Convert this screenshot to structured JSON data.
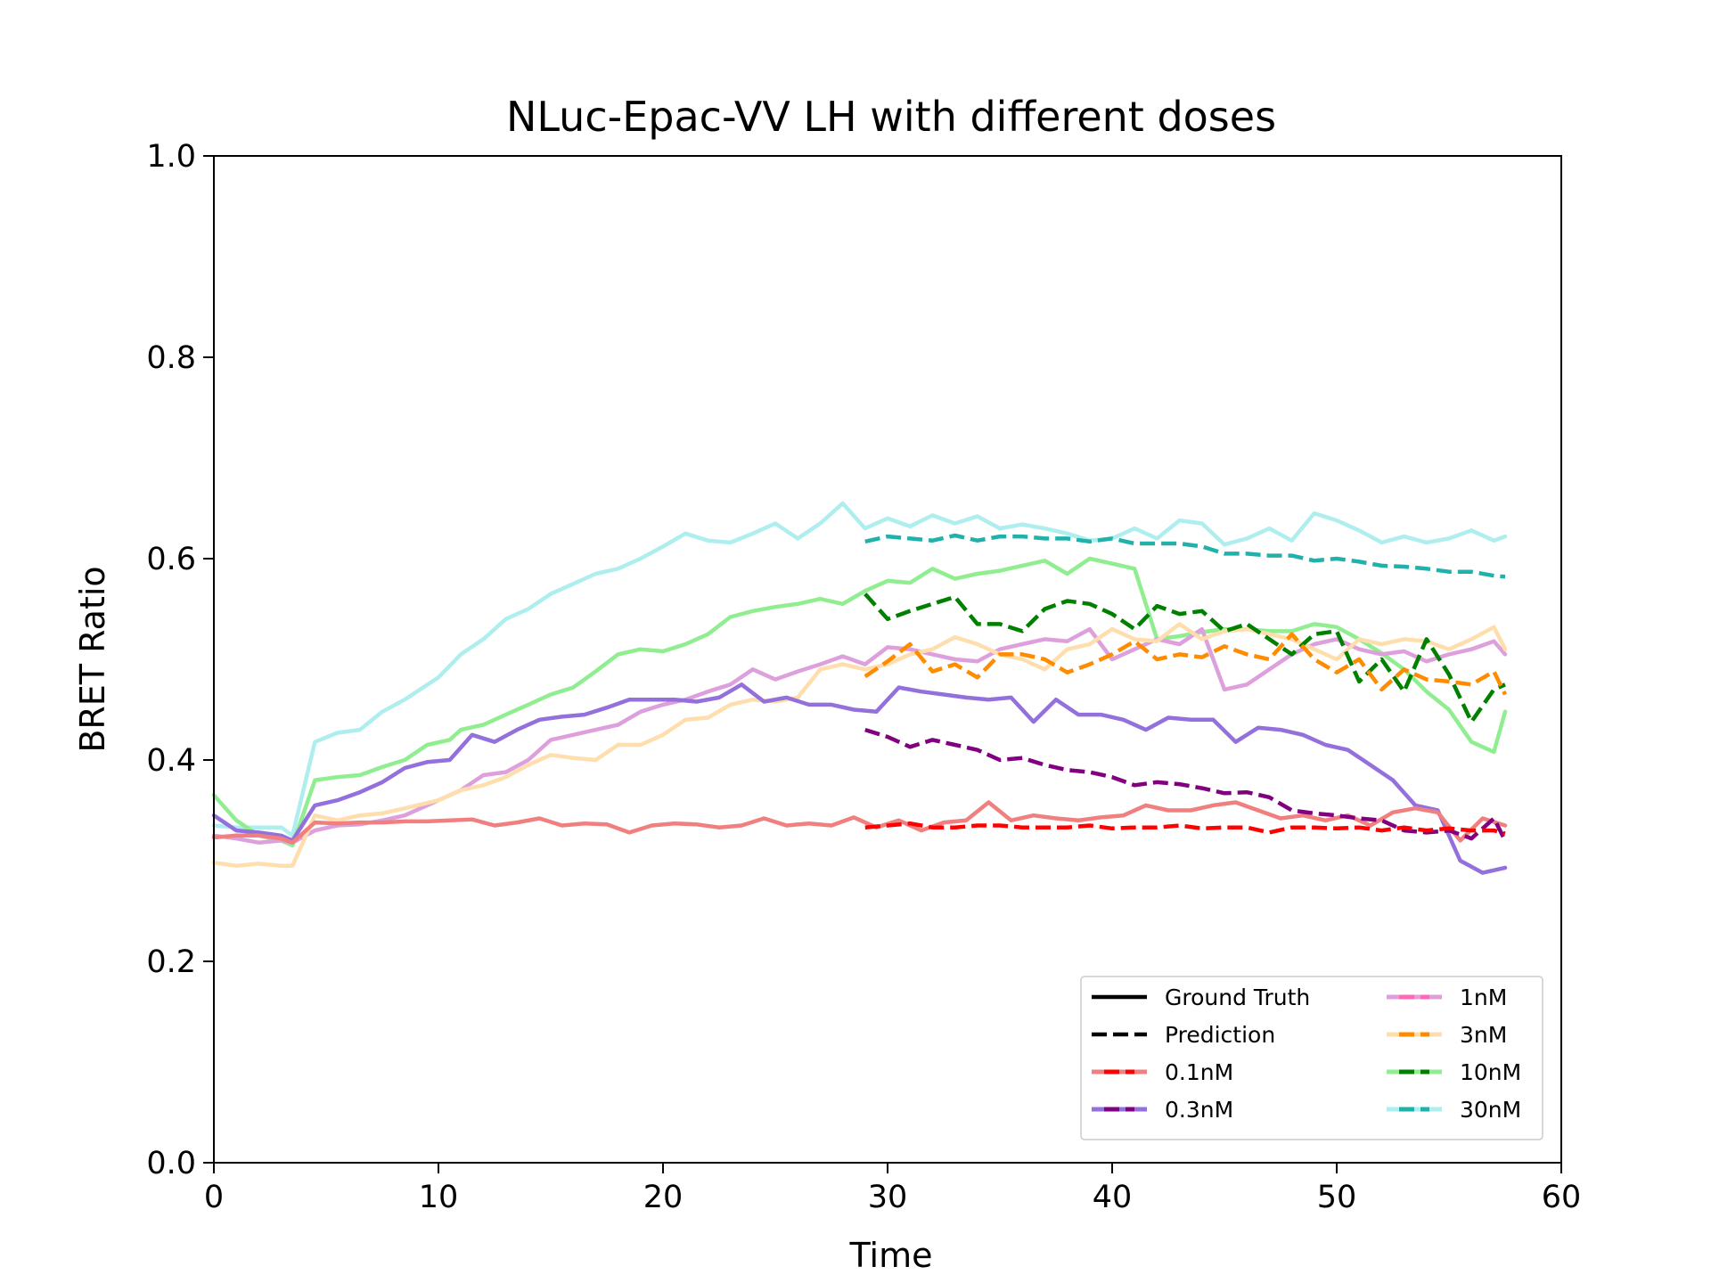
{
  "chart_data": {
    "type": "line",
    "title": "NLuc-Epac-VV LH with different doses",
    "xlabel": "Time",
    "ylabel": "BRET Ratio",
    "xlim": [
      0,
      60
    ],
    "ylim": [
      0,
      1
    ],
    "xticks": [
      0,
      10,
      20,
      30,
      40,
      50,
      60
    ],
    "yticks": [
      0.0,
      0.2,
      0.4,
      0.6,
      0.8,
      1.0
    ],
    "xtick_labels": [
      "0",
      "10",
      "20",
      "30",
      "40",
      "50",
      "60"
    ],
    "ytick_labels": [
      "0.0",
      "0.2",
      "0.4",
      "0.6",
      "0.8",
      "1.0"
    ],
    "grid": false,
    "legend_position": "lower-right",
    "legend_style": [
      {
        "label": "Ground Truth",
        "dash": false
      },
      {
        "label": "Prediction",
        "dash": true
      }
    ],
    "legend_doses": [
      {
        "label": "0.1nM",
        "gt_color": "#f08080",
        "pred_color": "#ff0000"
      },
      {
        "label": "0.3nM",
        "gt_color": "#9370db",
        "pred_color": "#800080"
      },
      {
        "label": "1nM",
        "gt_color": "#dda0dd",
        "pred_color": "#ff69b4"
      },
      {
        "label": "3nM",
        "gt_color": "#ffdead",
        "pred_color": "#ff8c00"
      },
      {
        "label": "10nM",
        "gt_color": "#90ee90",
        "pred_color": "#008000"
      },
      {
        "label": "30nM",
        "gt_color": "#afeeee",
        "pred_color": "#20b2aa"
      }
    ],
    "series": [
      {
        "dose": "30nM",
        "kind": "ground_truth",
        "color": "#afeeee",
        "x": [
          0,
          1,
          2,
          3,
          3.5,
          4.5,
          5.5,
          6.5,
          7.5,
          8.5,
          10,
          11,
          12,
          13,
          14,
          15,
          16,
          17,
          18,
          19,
          20,
          21,
          22,
          23,
          24,
          25,
          26,
          27,
          28,
          29,
          30,
          31,
          32,
          33,
          34,
          35,
          36,
          37,
          38,
          39,
          40,
          41,
          42,
          43,
          44,
          45,
          46,
          47,
          48,
          49,
          50,
          51,
          52,
          53,
          54,
          55,
          56,
          57,
          57.5
        ],
        "y": [
          0.335,
          0.333,
          0.333,
          0.333,
          0.325,
          0.418,
          0.427,
          0.43,
          0.448,
          0.46,
          0.482,
          0.505,
          0.52,
          0.54,
          0.55,
          0.565,
          0.575,
          0.585,
          0.59,
          0.6,
          0.612,
          0.625,
          0.618,
          0.616,
          0.625,
          0.635,
          0.62,
          0.635,
          0.655,
          0.63,
          0.64,
          0.632,
          0.643,
          0.635,
          0.642,
          0.63,
          0.634,
          0.63,
          0.625,
          0.618,
          0.62,
          0.63,
          0.62,
          0.638,
          0.635,
          0.614,
          0.62,
          0.63,
          0.618,
          0.645,
          0.638,
          0.628,
          0.616,
          0.622,
          0.616,
          0.62,
          0.628,
          0.618,
          0.622
        ]
      },
      {
        "dose": "10nM",
        "kind": "ground_truth",
        "color": "#90ee90",
        "x": [
          0,
          1,
          2,
          3,
          3.5,
          4.5,
          5.5,
          6.5,
          7.5,
          8.5,
          9.5,
          10.5,
          11,
          12,
          13,
          14,
          15,
          16,
          17,
          18,
          19,
          20,
          21,
          22,
          23,
          24,
          25,
          26,
          27,
          28,
          29,
          30,
          31,
          32,
          33,
          34,
          35,
          36,
          37,
          38,
          39,
          40,
          41,
          42,
          43,
          44,
          45,
          46,
          47,
          48,
          49,
          50,
          51,
          52,
          53,
          54,
          55,
          56,
          57,
          57.5
        ],
        "y": [
          0.365,
          0.34,
          0.325,
          0.32,
          0.315,
          0.38,
          0.383,
          0.385,
          0.393,
          0.4,
          0.415,
          0.42,
          0.43,
          0.435,
          0.445,
          0.455,
          0.465,
          0.472,
          0.488,
          0.505,
          0.51,
          0.508,
          0.515,
          0.525,
          0.542,
          0.548,
          0.552,
          0.555,
          0.56,
          0.555,
          0.568,
          0.578,
          0.576,
          0.59,
          0.58,
          0.585,
          0.588,
          0.593,
          0.598,
          0.585,
          0.6,
          0.595,
          0.59,
          0.52,
          0.523,
          0.527,
          0.53,
          0.53,
          0.528,
          0.528,
          0.535,
          0.532,
          0.52,
          0.506,
          0.49,
          0.468,
          0.45,
          0.418,
          0.408,
          0.448
        ]
      },
      {
        "dose": "1nM",
        "kind": "ground_truth",
        "color": "#dda0dd",
        "x": [
          0,
          1,
          2,
          3,
          3.5,
          4.5,
          5.5,
          6.5,
          7.5,
          8.5,
          10,
          11,
          12,
          13,
          14,
          15,
          16,
          17,
          18,
          19,
          20,
          21,
          22,
          23,
          24,
          25,
          26,
          27,
          28,
          29,
          30,
          31,
          32,
          33,
          34,
          35,
          36,
          37,
          38,
          39,
          40,
          41,
          42,
          43,
          44,
          45,
          46,
          47,
          48,
          49,
          50,
          51,
          52,
          53,
          54,
          55,
          56,
          57,
          57.5
        ],
        "y": [
          0.325,
          0.322,
          0.318,
          0.32,
          0.318,
          0.33,
          0.335,
          0.336,
          0.34,
          0.345,
          0.36,
          0.37,
          0.385,
          0.388,
          0.4,
          0.42,
          0.425,
          0.43,
          0.435,
          0.448,
          0.455,
          0.46,
          0.468,
          0.475,
          0.49,
          0.48,
          0.488,
          0.495,
          0.503,
          0.495,
          0.512,
          0.51,
          0.505,
          0.5,
          0.498,
          0.51,
          0.515,
          0.52,
          0.518,
          0.53,
          0.5,
          0.51,
          0.52,
          0.515,
          0.53,
          0.47,
          0.475,
          0.49,
          0.505,
          0.515,
          0.52,
          0.51,
          0.505,
          0.508,
          0.498,
          0.505,
          0.51,
          0.518,
          0.505
        ]
      },
      {
        "dose": "3nM",
        "kind": "ground_truth",
        "color": "#ffdead",
        "x": [
          0,
          1,
          2,
          3,
          3.5,
          4.5,
          5.5,
          6.5,
          7.5,
          8.5,
          10,
          11,
          12,
          13,
          14,
          15,
          16,
          17,
          18,
          19,
          20,
          21,
          22,
          23,
          24,
          25,
          26,
          27,
          28,
          29,
          30,
          31,
          32,
          33,
          34,
          35,
          36,
          37,
          38,
          39,
          40,
          41,
          42,
          43,
          44,
          45,
          46,
          47,
          48,
          49,
          50,
          51,
          52,
          53,
          54,
          55,
          56,
          57,
          57.5
        ],
        "y": [
          0.298,
          0.295,
          0.297,
          0.295,
          0.295,
          0.345,
          0.34,
          0.345,
          0.347,
          0.352,
          0.36,
          0.37,
          0.375,
          0.383,
          0.395,
          0.405,
          0.402,
          0.4,
          0.415,
          0.415,
          0.425,
          0.44,
          0.442,
          0.455,
          0.46,
          0.458,
          0.462,
          0.49,
          0.495,
          0.49,
          0.495,
          0.505,
          0.51,
          0.522,
          0.515,
          0.505,
          0.5,
          0.49,
          0.51,
          0.515,
          0.53,
          0.52,
          0.518,
          0.535,
          0.52,
          0.528,
          0.53,
          0.525,
          0.52,
          0.51,
          0.5,
          0.52,
          0.515,
          0.52,
          0.518,
          0.51,
          0.52,
          0.532,
          0.51
        ]
      },
      {
        "dose": "0.3nM",
        "kind": "ground_truth",
        "color": "#9370db",
        "x": [
          0,
          1,
          2,
          3,
          3.5,
          4.5,
          5.5,
          6.5,
          7.5,
          8.5,
          9.5,
          10.5,
          11.5,
          12.5,
          13.5,
          14.5,
          15.5,
          16.5,
          17.5,
          18.5,
          19.5,
          20.5,
          21.5,
          22.5,
          23.5,
          24.5,
          25.5,
          26.5,
          27.5,
          28.5,
          29.5,
          30.5,
          31.5,
          32.5,
          33.5,
          34.5,
          35.5,
          36.5,
          37.5,
          38.5,
          39.5,
          40.5,
          41.5,
          42.5,
          43.5,
          44.5,
          45.5,
          46.5,
          47.5,
          48.5,
          49.5,
          50.5,
          51.5,
          52.5,
          53.5,
          54.5,
          55.5,
          56.5,
          57.5
        ],
        "y": [
          0.345,
          0.33,
          0.328,
          0.325,
          0.32,
          0.355,
          0.36,
          0.368,
          0.378,
          0.392,
          0.398,
          0.4,
          0.425,
          0.418,
          0.43,
          0.44,
          0.443,
          0.445,
          0.452,
          0.46,
          0.46,
          0.46,
          0.458,
          0.462,
          0.475,
          0.458,
          0.462,
          0.455,
          0.455,
          0.45,
          0.448,
          0.472,
          0.468,
          0.465,
          0.462,
          0.46,
          0.462,
          0.438,
          0.46,
          0.445,
          0.445,
          0.44,
          0.43,
          0.442,
          0.44,
          0.44,
          0.418,
          0.432,
          0.43,
          0.425,
          0.415,
          0.41,
          0.395,
          0.38,
          0.355,
          0.35,
          0.3,
          0.288,
          0.293
        ]
      },
      {
        "dose": "0.1nM",
        "kind": "ground_truth",
        "color": "#f08080",
        "x": [
          0,
          1,
          2,
          3,
          3.5,
          4.5,
          5.5,
          6.5,
          7.5,
          8.5,
          9.5,
          10.5,
          11.5,
          12.5,
          13.5,
          14.5,
          15.5,
          16.5,
          17.5,
          18.5,
          19.5,
          20.5,
          21.5,
          22.5,
          23.5,
          24.5,
          25.5,
          26.5,
          27.5,
          28.5,
          29.5,
          30.5,
          31.5,
          32.5,
          33.5,
          34.5,
          35.5,
          36.5,
          37.5,
          38.5,
          39.5,
          40.5,
          41.5,
          42.5,
          43.5,
          44.5,
          45.5,
          46.5,
          47.5,
          48.5,
          49.5,
          50.5,
          51.5,
          52.5,
          53.5,
          54.5,
          55.5,
          56.5,
          57.5
        ],
        "y": [
          0.323,
          0.325,
          0.325,
          0.322,
          0.318,
          0.338,
          0.337,
          0.338,
          0.338,
          0.339,
          0.339,
          0.34,
          0.341,
          0.335,
          0.338,
          0.342,
          0.335,
          0.337,
          0.336,
          0.328,
          0.335,
          0.337,
          0.336,
          0.333,
          0.335,
          0.342,
          0.335,
          0.337,
          0.335,
          0.343,
          0.333,
          0.34,
          0.33,
          0.338,
          0.34,
          0.358,
          0.34,
          0.345,
          0.342,
          0.34,
          0.343,
          0.345,
          0.355,
          0.35,
          0.35,
          0.355,
          0.358,
          0.35,
          0.342,
          0.345,
          0.34,
          0.345,
          0.335,
          0.348,
          0.352,
          0.348,
          0.32,
          0.342,
          0.335
        ]
      },
      {
        "dose": "30nM",
        "kind": "prediction",
        "color": "#20b2aa",
        "x": [
          29,
          30,
          31,
          32,
          33,
          34,
          35,
          36,
          37,
          38,
          39,
          40,
          41,
          42,
          43,
          44,
          45,
          46,
          47,
          48,
          49,
          50,
          51,
          52,
          53,
          54,
          55,
          56,
          57,
          57.5
        ],
        "y": [
          0.617,
          0.622,
          0.62,
          0.618,
          0.623,
          0.618,
          0.622,
          0.622,
          0.62,
          0.62,
          0.617,
          0.62,
          0.615,
          0.615,
          0.615,
          0.612,
          0.605,
          0.605,
          0.603,
          0.603,
          0.598,
          0.6,
          0.597,
          0.593,
          0.592,
          0.59,
          0.587,
          0.587,
          0.583,
          0.582
        ]
      },
      {
        "dose": "10nM",
        "kind": "prediction",
        "color": "#008000",
        "x": [
          29,
          30,
          31,
          32,
          33,
          34,
          35,
          36,
          37,
          38,
          39,
          40,
          41,
          42,
          43,
          44,
          45,
          46,
          47,
          48,
          49,
          50,
          51,
          52,
          53,
          54,
          55,
          56,
          57,
          57.5
        ],
        "y": [
          0.565,
          0.54,
          0.548,
          0.555,
          0.562,
          0.535,
          0.535,
          0.528,
          0.55,
          0.558,
          0.555,
          0.545,
          0.53,
          0.553,
          0.545,
          0.548,
          0.528,
          0.535,
          0.52,
          0.505,
          0.525,
          0.528,
          0.478,
          0.5,
          0.468,
          0.52,
          0.485,
          0.438,
          0.47,
          0.475
        ]
      },
      {
        "dose": "3nM",
        "kind": "prediction",
        "color": "#ff8c00",
        "x": [
          29,
          30,
          31,
          32,
          33,
          34,
          35,
          36,
          37,
          38,
          39,
          40,
          41,
          42,
          43,
          44,
          45,
          46,
          47,
          48,
          49,
          50,
          51,
          52,
          53,
          54,
          55,
          56,
          57,
          57.5
        ],
        "y": [
          0.483,
          0.498,
          0.515,
          0.488,
          0.495,
          0.482,
          0.505,
          0.505,
          0.5,
          0.487,
          0.495,
          0.505,
          0.518,
          0.5,
          0.505,
          0.502,
          0.513,
          0.505,
          0.5,
          0.525,
          0.5,
          0.487,
          0.5,
          0.47,
          0.49,
          0.48,
          0.478,
          0.475,
          0.488,
          0.465
        ]
      },
      {
        "dose": "0.3nM",
        "kind": "prediction",
        "color": "#800080",
        "x": [
          29,
          30,
          31,
          32,
          33,
          34,
          35,
          36,
          37,
          38,
          39,
          40,
          41,
          42,
          43,
          44,
          45,
          46,
          47,
          48,
          49,
          50,
          51,
          52,
          53,
          54,
          55,
          56,
          57,
          57.5
        ],
        "y": [
          0.43,
          0.423,
          0.413,
          0.42,
          0.415,
          0.41,
          0.4,
          0.402,
          0.395,
          0.39,
          0.388,
          0.383,
          0.375,
          0.378,
          0.376,
          0.372,
          0.367,
          0.368,
          0.363,
          0.35,
          0.347,
          0.345,
          0.342,
          0.34,
          0.33,
          0.328,
          0.33,
          0.322,
          0.342,
          0.32
        ]
      },
      {
        "dose": "0.1nM",
        "kind": "prediction",
        "color": "#ff0000",
        "x": [
          29,
          30,
          31,
          32,
          33,
          34,
          35,
          36,
          37,
          38,
          39,
          40,
          41,
          42,
          43,
          44,
          45,
          46,
          47,
          48,
          49,
          50,
          51,
          52,
          53,
          54,
          55,
          56,
          57,
          57.5
        ],
        "y": [
          0.333,
          0.335,
          0.337,
          0.333,
          0.333,
          0.335,
          0.335,
          0.333,
          0.333,
          0.333,
          0.335,
          0.332,
          0.333,
          0.333,
          0.335,
          0.332,
          0.333,
          0.333,
          0.328,
          0.333,
          0.333,
          0.332,
          0.333,
          0.33,
          0.333,
          0.33,
          0.332,
          0.33,
          0.33,
          0.327
        ]
      }
    ]
  }
}
